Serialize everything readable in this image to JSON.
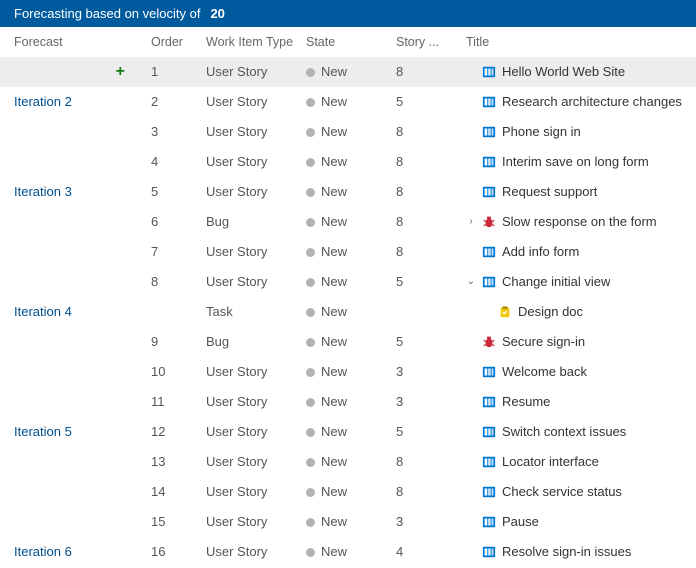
{
  "banner": {
    "prefix": "Forecasting based on velocity of",
    "velocity": "20"
  },
  "columns": {
    "forecast": "Forecast",
    "order": "Order",
    "type": "Work Item Type",
    "state": "State",
    "story": "Story ...",
    "title": "Title"
  },
  "stateLabel": "New",
  "icons": {
    "story": {
      "fill": "#0078d4"
    },
    "bug": {
      "fill": "#cc293d"
    },
    "task": {
      "fill": "#f2c811"
    }
  },
  "rows": [
    {
      "forecast": "",
      "plus": true,
      "order": "1",
      "type": "User Story",
      "state": "New",
      "story": "8",
      "icon": "story",
      "title": "Hello World Web Site",
      "sel": true,
      "divider": "none",
      "chev": "none"
    },
    {
      "forecast": "Iteration 2",
      "order": "2",
      "type": "User Story",
      "state": "New",
      "story": "5",
      "icon": "story",
      "title": "Research architecture changes",
      "divider": "blue",
      "chev": "none"
    },
    {
      "forecast": "",
      "order": "3",
      "type": "User Story",
      "state": "New",
      "story": "8",
      "icon": "story",
      "title": "Phone sign in",
      "divider": "light",
      "chev": "none"
    },
    {
      "forecast": "",
      "order": "4",
      "type": "User Story",
      "state": "New",
      "story": "8",
      "icon": "story",
      "title": "Interim save on long form",
      "divider": "none",
      "chev": "none"
    },
    {
      "forecast": "Iteration 3",
      "order": "5",
      "type": "User Story",
      "state": "New",
      "story": "8",
      "icon": "story",
      "title": "Request support",
      "divider": "blue",
      "chev": "none"
    },
    {
      "forecast": "",
      "order": "6",
      "type": "Bug",
      "state": "New",
      "story": "8",
      "icon": "bug",
      "title": "Slow response on the form",
      "divider": "light",
      "chev": "right"
    },
    {
      "forecast": "",
      "order": "7",
      "type": "User Story",
      "state": "New",
      "story": "8",
      "icon": "story",
      "title": "Add info form",
      "divider": "none",
      "chev": "none"
    },
    {
      "forecast": "",
      "order": "8",
      "type": "User Story",
      "state": "New",
      "story": "5",
      "icon": "story",
      "title": "Change initial view",
      "divider": "none",
      "chev": "down"
    },
    {
      "forecast": "Iteration 4",
      "order": "",
      "type": "Task",
      "state": "New",
      "story": "",
      "icon": "task",
      "title": "Design doc",
      "divider": "blue",
      "chev": "none",
      "indent": true
    },
    {
      "forecast": "",
      "order": "9",
      "type": "Bug",
      "state": "New",
      "story": "5",
      "icon": "bug",
      "title": "Secure sign-in",
      "divider": "light",
      "chev": "none"
    },
    {
      "forecast": "",
      "order": "10",
      "type": "User Story",
      "state": "New",
      "story": "3",
      "icon": "story",
      "title": "Welcome back",
      "divider": "none",
      "chev": "none"
    },
    {
      "forecast": "",
      "order": "11",
      "type": "User Story",
      "state": "New",
      "story": "3",
      "icon": "story",
      "title": "Resume",
      "divider": "none",
      "chev": "none"
    },
    {
      "forecast": "Iteration 5",
      "order": "12",
      "type": "User Story",
      "state": "New",
      "story": "5",
      "icon": "story",
      "title": "Switch context issues",
      "divider": "blue",
      "chev": "none"
    },
    {
      "forecast": "",
      "order": "13",
      "type": "User Story",
      "state": "New",
      "story": "8",
      "icon": "story",
      "title": "Locator interface",
      "divider": "light",
      "chev": "none"
    },
    {
      "forecast": "",
      "order": "14",
      "type": "User Story",
      "state": "New",
      "story": "8",
      "icon": "story",
      "title": "Check service status",
      "divider": "none",
      "chev": "none"
    },
    {
      "forecast": "",
      "order": "15",
      "type": "User Story",
      "state": "New",
      "story": "3",
      "icon": "story",
      "title": "Pause",
      "divider": "none",
      "chev": "none"
    },
    {
      "forecast": "Iteration 6",
      "order": "16",
      "type": "User Story",
      "state": "New",
      "story": "4",
      "icon": "story",
      "title": "Resolve sign-in issues",
      "divider": "blue",
      "chev": "none"
    }
  ]
}
